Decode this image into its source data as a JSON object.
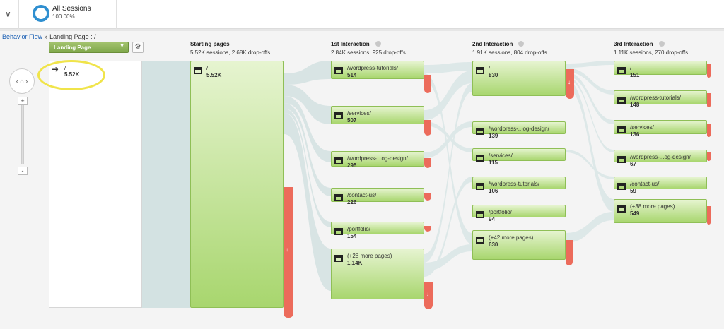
{
  "segment": {
    "title": "All Sessions",
    "percent": "100.00%"
  },
  "breadcrumb": {
    "link": "Behavior Flow",
    "sep": "»",
    "rest": "Landing Page : /"
  },
  "dimension_select": {
    "label": "Landing Page"
  },
  "landing": {
    "name": "/",
    "value": "5.52K"
  },
  "columns": [
    {
      "title": "Starting pages",
      "stats": "5.52K sessions, 2.68K drop-offs"
    },
    {
      "title": "1st Interaction",
      "stats": "2.84K sessions, 925 drop-offs"
    },
    {
      "title": "2nd Interaction",
      "stats": "1.91K sessions, 804 drop-offs"
    },
    {
      "title": "3rd Interaction",
      "stats": "1.11K sessions, 270 drop-offs"
    }
  ],
  "starting": [
    {
      "name": "/",
      "value": "5.52K"
    }
  ],
  "first": [
    {
      "name": "/wordpress-tutorials/",
      "value": "514"
    },
    {
      "name": "/services/",
      "value": "507"
    },
    {
      "name": "/wordpress-...og-design/",
      "value": "295"
    },
    {
      "name": "/contact-us/",
      "value": "226"
    },
    {
      "name": "/portfolio/",
      "value": "154"
    },
    {
      "name": "(+28 more pages)",
      "value": "1.14K"
    }
  ],
  "second": [
    {
      "name": "/",
      "value": "830"
    },
    {
      "name": "/wordpress-...og-design/",
      "value": "139"
    },
    {
      "name": "/services/",
      "value": "115"
    },
    {
      "name": "/wordpress-tutorials/",
      "value": "106"
    },
    {
      "name": "/portfolio/",
      "value": "94"
    },
    {
      "name": "(+42 more pages)",
      "value": "630"
    }
  ],
  "third": [
    {
      "name": "/",
      "value": "151"
    },
    {
      "name": "/wordpress-tutorials/",
      "value": "148"
    },
    {
      "name": "/services/",
      "value": "136"
    },
    {
      "name": "/wordpress-...og-design/",
      "value": "67"
    },
    {
      "name": "/contact-us/",
      "value": "59"
    },
    {
      "name": "(+38 more pages)",
      "value": "549"
    }
  ],
  "icons": {
    "collapse": "chevron-down-icon",
    "segment": "segment-ring-icon",
    "settings": "gear-icon",
    "nav": "home-pan-icon",
    "landing": "entrance-arrows-icon",
    "page": "page-icon"
  },
  "colors": {
    "node": "#a8d66e",
    "dropoff": "#ec6b5b",
    "flow": "#d3e2e2",
    "segment": "#2f8fd0"
  }
}
